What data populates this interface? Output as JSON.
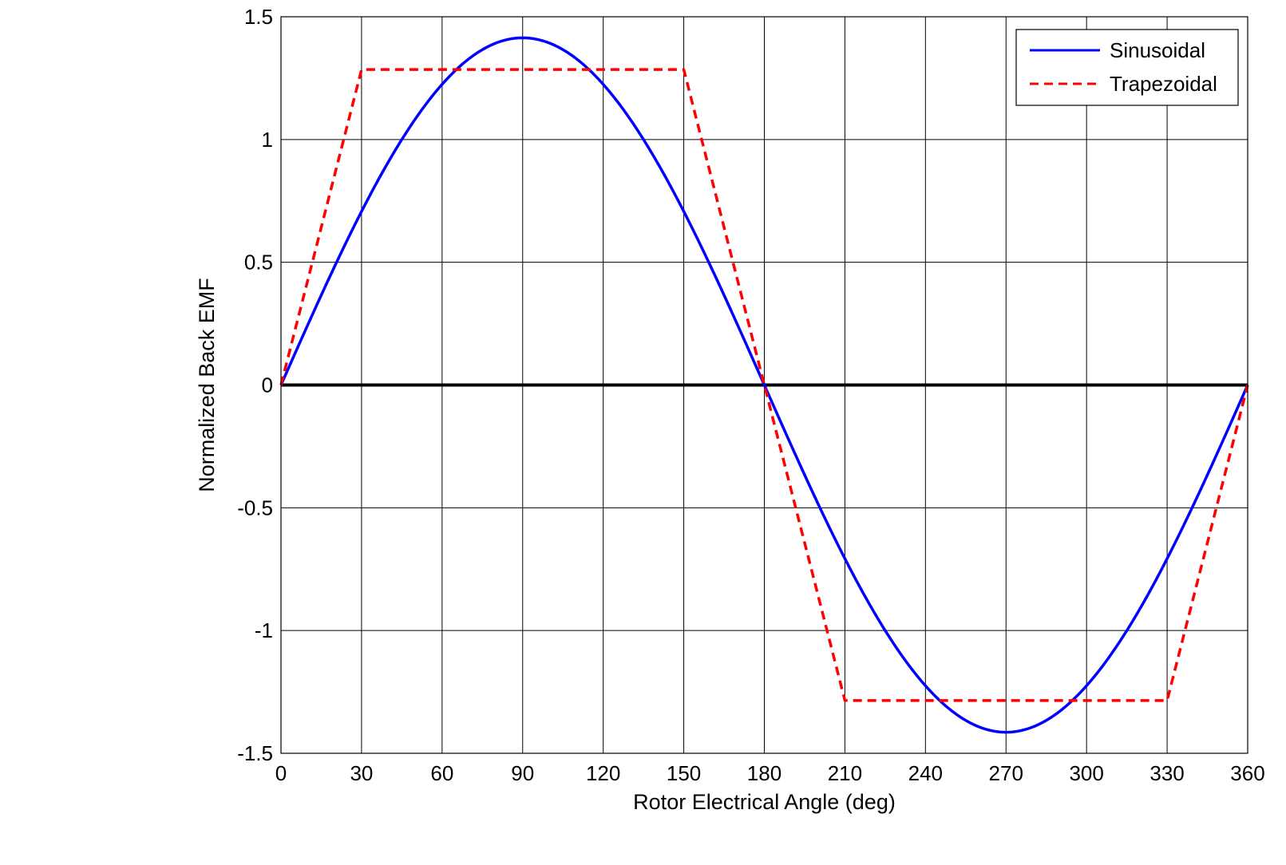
{
  "chart_data": {
    "type": "line",
    "title": "",
    "xlabel": "Rotor Electrical Angle (deg)",
    "ylabel": "Normalized Back EMF",
    "xlim": [
      0,
      360
    ],
    "ylim": [
      -1.5,
      1.5
    ],
    "x_ticks": [
      0,
      30,
      60,
      90,
      120,
      150,
      180,
      210,
      240,
      270,
      300,
      330,
      360
    ],
    "x_tick_labels": [
      "0",
      "30",
      "60",
      "90",
      "120",
      "150",
      "180",
      "210",
      "240",
      "270",
      "300",
      "330",
      "360"
    ],
    "y_ticks": [
      1.5,
      1,
      0.5,
      0,
      -0.5,
      -1,
      -1.5
    ],
    "y_tick_labels": [
      "1.5",
      "1",
      "0.5",
      "0",
      "-0.5",
      "-1",
      "-1.5"
    ],
    "grid": true,
    "legend_position": "top-right",
    "zero_line": {
      "y": 0,
      "color": "#000000"
    },
    "series": [
      {
        "name": "Sinusoidal",
        "color": "#0000ff",
        "style": "solid",
        "function": "sqrt(2) * sin(x deg)",
        "x": [
          0,
          15,
          30,
          45,
          60,
          75,
          90,
          105,
          120,
          135,
          150,
          165,
          180,
          195,
          210,
          225,
          240,
          255,
          270,
          285,
          300,
          315,
          330,
          345,
          360
        ],
        "y": [
          0,
          0.366,
          0.707,
          1.0,
          1.225,
          1.366,
          1.414,
          1.366,
          1.225,
          1.0,
          0.707,
          0.366,
          0,
          -0.366,
          -0.707,
          -1.0,
          -1.225,
          -1.366,
          -1.414,
          -1.366,
          -1.225,
          -1.0,
          -0.707,
          -0.366,
          0
        ]
      },
      {
        "name": "Trapezoidal",
        "color": "#ff0000",
        "style": "dashed",
        "x": [
          0,
          30,
          150,
          180,
          210,
          330,
          360
        ],
        "y": [
          0,
          1.285,
          1.285,
          0,
          -1.285,
          -1.285,
          0
        ]
      }
    ]
  }
}
